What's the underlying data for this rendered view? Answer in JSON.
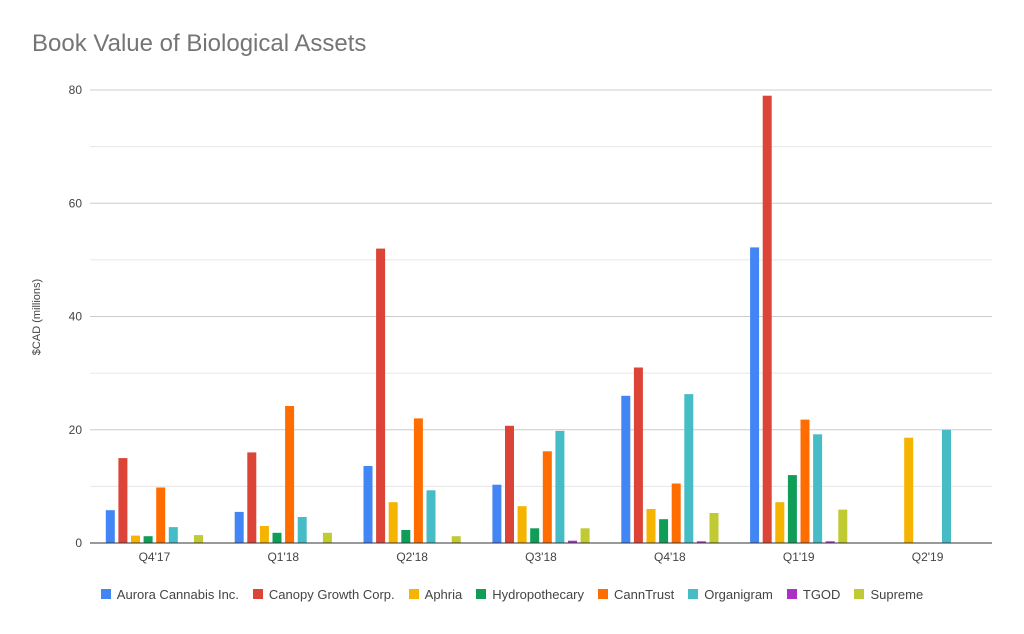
{
  "chart_data": {
    "type": "bar",
    "title": "Book Value of Biological Assets",
    "xlabel": "",
    "ylabel": "$CAD (millions)",
    "ylim": [
      0,
      80
    ],
    "yticks": [
      0,
      20,
      40,
      60,
      80
    ],
    "grid": true,
    "legend_position": "bottom",
    "categories": [
      "Q4'17",
      "Q1'18",
      "Q2'18",
      "Q3'18",
      "Q4'18",
      "Q1'19",
      "Q2'19"
    ],
    "series": [
      {
        "name": "Aurora Cannabis Inc.",
        "color": "#4285f4",
        "values": [
          5.8,
          5.5,
          13.6,
          10.3,
          26.0,
          52.2,
          null
        ]
      },
      {
        "name": "Canopy Growth Corp.",
        "color": "#db4437",
        "values": [
          15.0,
          16.0,
          52.0,
          20.7,
          31.0,
          79.0,
          null
        ]
      },
      {
        "name": "Aphria",
        "color": "#f4b400",
        "values": [
          1.3,
          3.0,
          7.2,
          6.5,
          6.0,
          7.2,
          18.6
        ]
      },
      {
        "name": "Hydropothecary",
        "color": "#0f9d58",
        "values": [
          1.2,
          1.8,
          2.3,
          2.6,
          4.2,
          12.0,
          null
        ]
      },
      {
        "name": "CannTrust",
        "color": "#ff6d00",
        "values": [
          9.8,
          24.2,
          22.0,
          16.2,
          10.5,
          21.8,
          null
        ]
      },
      {
        "name": "Organigram",
        "color": "#46bdc6",
        "values": [
          2.8,
          4.6,
          9.3,
          19.8,
          26.3,
          19.2,
          20.0
        ]
      },
      {
        "name": "TGOD",
        "color": "#ab30c4",
        "values": [
          null,
          null,
          null,
          0.4,
          0.3,
          0.3,
          null
        ]
      },
      {
        "name": "Supreme",
        "color": "#c0ca33",
        "values": [
          1.4,
          1.8,
          1.2,
          2.6,
          5.3,
          5.9,
          null
        ]
      }
    ]
  }
}
